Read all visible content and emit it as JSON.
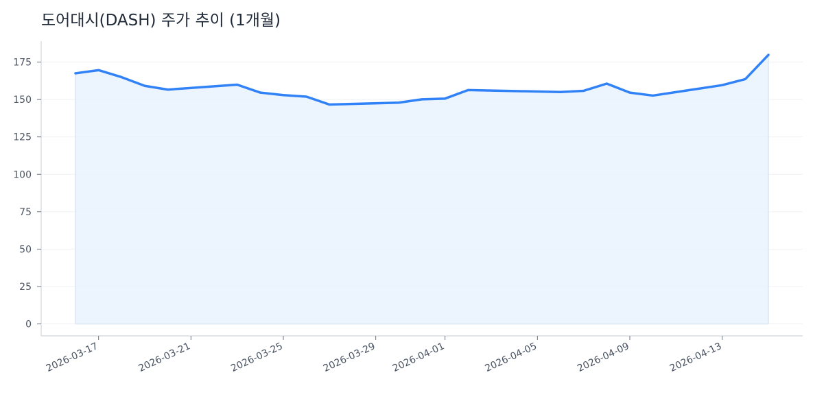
{
  "title": "도어대시(DASH) 주가 추이 (1개월)",
  "chart_data": {
    "type": "area",
    "title": "도어대시(DASH) 주가 추이 (1개월)",
    "xlabel": "",
    "ylabel": "",
    "ylim": [
      -8,
      189
    ],
    "yticks": [
      0,
      25,
      50,
      75,
      100,
      125,
      150,
      175
    ],
    "xticks": [
      "2026-03-17",
      "2026-03-21",
      "2026-03-25",
      "2026-03-29",
      "2026-04-01",
      "2026-04-05",
      "2026-04-09",
      "2026-04-13"
    ],
    "grid": true,
    "legend": "none",
    "colors": {
      "line": "#3182f6",
      "fill": "#e9f2fe",
      "grid": "#eef0f3",
      "axis": "#d1d5db",
      "text": "#4b5563"
    },
    "x": [
      "2026-03-16",
      "2026-03-17",
      "2026-03-18",
      "2026-03-19",
      "2026-03-20",
      "2026-03-23",
      "2026-03-24",
      "2026-03-25",
      "2026-03-26",
      "2026-03-27",
      "2026-03-30",
      "2026-03-31",
      "2026-04-01",
      "2026-04-02",
      "2026-04-06",
      "2026-04-07",
      "2026-04-08",
      "2026-04-09",
      "2026-04-10",
      "2026-04-13",
      "2026-04-14",
      "2026-04-15"
    ],
    "series": [
      {
        "values": [
          167.5,
          169.6,
          164.9,
          159.1,
          156.6,
          159.9,
          154.6,
          152.9,
          151.9,
          146.6,
          147.9,
          150.1,
          150.6,
          156.3,
          155.0,
          155.8,
          160.6,
          154.6,
          152.6,
          159.6,
          163.6,
          179.8
        ]
      }
    ]
  }
}
